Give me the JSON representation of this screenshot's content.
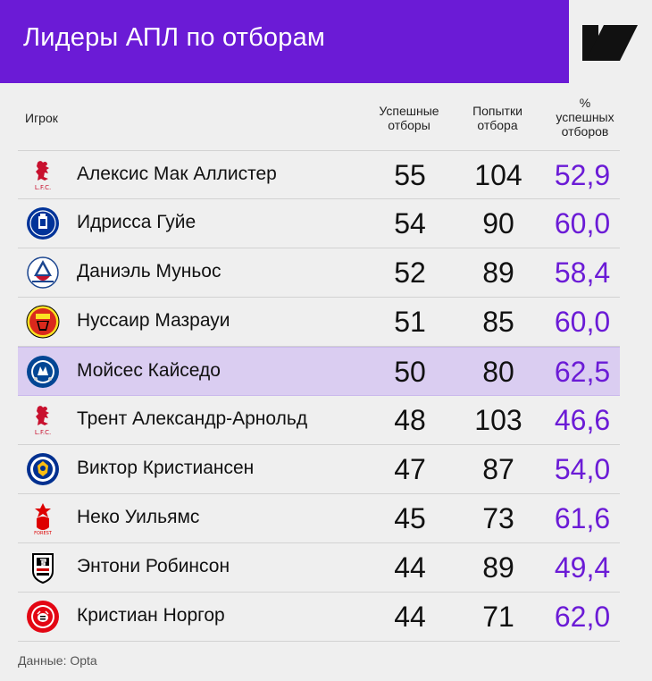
{
  "header": {
    "title": "Лидеры АПЛ по отборам",
    "logo": "sports-ru-logo"
  },
  "columns": {
    "player": "Игрок",
    "successful": [
      "Успешные",
      "отборы"
    ],
    "attempts": [
      "Попытки",
      "отбора"
    ],
    "percent": [
      "%",
      "успешных",
      "отборов"
    ]
  },
  "rows": [
    {
      "club": "liverpool-crest",
      "name": "Алексис Мак Аллистер",
      "successful": "55",
      "attempts": "104",
      "percent": "52,9",
      "highlighted": false
    },
    {
      "club": "everton-crest",
      "name": "Идрисса Гуйе",
      "successful": "54",
      "attempts": "90",
      "percent": "60,0",
      "highlighted": false
    },
    {
      "club": "crystal-palace-crest",
      "name": "Даниэль Муньос",
      "successful": "52",
      "attempts": "89",
      "percent": "58,4",
      "highlighted": false
    },
    {
      "club": "man-united-crest",
      "name": "Нуссаир Мазрауи",
      "successful": "51",
      "attempts": "85",
      "percent": "60,0",
      "highlighted": false
    },
    {
      "club": "chelsea-crest",
      "name": "Мойсес Кайседо",
      "successful": "50",
      "attempts": "80",
      "percent": "62,5",
      "highlighted": true
    },
    {
      "club": "liverpool-crest",
      "name": "Трент Александр-Арнольд",
      "successful": "48",
      "attempts": "103",
      "percent": "46,6",
      "highlighted": false
    },
    {
      "club": "leicester-crest",
      "name": "Виктор Кристиансен",
      "successful": "47",
      "attempts": "87",
      "percent": "54,0",
      "highlighted": false
    },
    {
      "club": "nottingham-forest-crest",
      "name": "Неко Уильямс",
      "successful": "45",
      "attempts": "73",
      "percent": "61,6",
      "highlighted": false
    },
    {
      "club": "fulham-crest",
      "name": "Энтони Робинсон",
      "successful": "44",
      "attempts": "89",
      "percent": "49,4",
      "highlighted": false
    },
    {
      "club": "brentford-crest",
      "name": "Кристиан Норгор",
      "successful": "44",
      "attempts": "71",
      "percent": "62,0",
      "highlighted": false
    }
  ],
  "crest_text": {
    "lfc": "L.F.C.",
    "forest": "FOREST"
  },
  "source": "Данные: Opta",
  "colors": {
    "accent": "#6b1bd6",
    "highlight": "#dacdf1",
    "background": "#efefef"
  }
}
